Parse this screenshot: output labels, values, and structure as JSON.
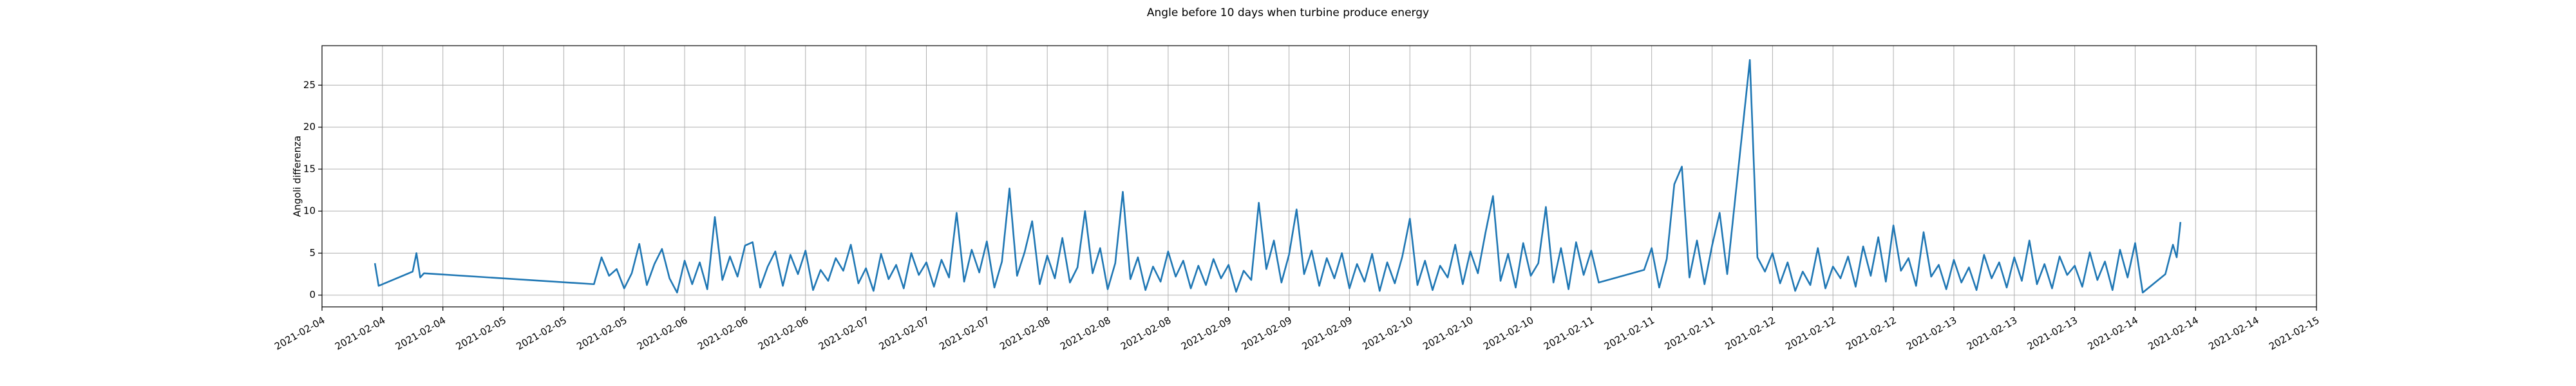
{
  "chart_data": {
    "type": "line",
    "title": "Angle before 10 days when turbine produce energy",
    "ylabel": "Angoli differenza",
    "color": "#1f77b4",
    "grid": true,
    "xlim": [
      "2021-02-04 00:00",
      "2021-02-15 00:00"
    ],
    "ylim": [
      -1.4,
      29.7
    ],
    "yticks": [
      0,
      5,
      10,
      15,
      20,
      25
    ],
    "xticks": [
      {
        "value": "2021-02-04 00:00",
        "label": "2021-02-04"
      },
      {
        "value": "2021-02-04 08:00",
        "label": "2021-02-04"
      },
      {
        "value": "2021-02-04 16:00",
        "label": "2021-02-04"
      },
      {
        "value": "2021-02-05 00:00",
        "label": "2021-02-05"
      },
      {
        "value": "2021-02-05 08:00",
        "label": "2021-02-05"
      },
      {
        "value": "2021-02-05 16:00",
        "label": "2021-02-05"
      },
      {
        "value": "2021-02-06 00:00",
        "label": "2021-02-06"
      },
      {
        "value": "2021-02-06 08:00",
        "label": "2021-02-06"
      },
      {
        "value": "2021-02-06 16:00",
        "label": "2021-02-06"
      },
      {
        "value": "2021-02-07 00:00",
        "label": "2021-02-07"
      },
      {
        "value": "2021-02-07 08:00",
        "label": "2021-02-07"
      },
      {
        "value": "2021-02-07 16:00",
        "label": "2021-02-07"
      },
      {
        "value": "2021-02-08 00:00",
        "label": "2021-02-08"
      },
      {
        "value": "2021-02-08 08:00",
        "label": "2021-02-08"
      },
      {
        "value": "2021-02-08 16:00",
        "label": "2021-02-08"
      },
      {
        "value": "2021-02-09 00:00",
        "label": "2021-02-09"
      },
      {
        "value": "2021-02-09 08:00",
        "label": "2021-02-09"
      },
      {
        "value": "2021-02-09 16:00",
        "label": "2021-02-09"
      },
      {
        "value": "2021-02-10 00:00",
        "label": "2021-02-10"
      },
      {
        "value": "2021-02-10 08:00",
        "label": "2021-02-10"
      },
      {
        "value": "2021-02-10 16:00",
        "label": "2021-02-10"
      },
      {
        "value": "2021-02-11 00:00",
        "label": "2021-02-11"
      },
      {
        "value": "2021-02-11 08:00",
        "label": "2021-02-11"
      },
      {
        "value": "2021-02-11 16:00",
        "label": "2021-02-11"
      },
      {
        "value": "2021-02-12 00:00",
        "label": "2021-02-12"
      },
      {
        "value": "2021-02-12 08:00",
        "label": "2021-02-12"
      },
      {
        "value": "2021-02-12 16:00",
        "label": "2021-02-12"
      },
      {
        "value": "2021-02-13 00:00",
        "label": "2021-02-13"
      },
      {
        "value": "2021-02-13 08:00",
        "label": "2021-02-13"
      },
      {
        "value": "2021-02-13 16:00",
        "label": "2021-02-13"
      },
      {
        "value": "2021-02-14 00:00",
        "label": "2021-02-14"
      },
      {
        "value": "2021-02-14 08:00",
        "label": "2021-02-14"
      },
      {
        "value": "2021-02-14 16:00",
        "label": "2021-02-14"
      },
      {
        "value": "2021-02-15 00:00",
        "label": "2021-02-15"
      }
    ],
    "x": [
      "2021-02-04 07:00",
      "2021-02-04 07:30",
      "2021-02-04 12:00",
      "2021-02-04 12:30",
      "2021-02-04 13:00",
      "2021-02-04 13:30",
      "2021-02-05 12:00",
      "2021-02-05 13:00",
      "2021-02-05 14:00",
      "2021-02-05 15:00",
      "2021-02-05 16:00",
      "2021-02-05 17:00",
      "2021-02-05 18:00",
      "2021-02-05 19:00",
      "2021-02-05 20:00",
      "2021-02-05 21:00",
      "2021-02-05 22:00",
      "2021-02-05 23:00",
      "2021-02-06 00:00",
      "2021-02-06 01:00",
      "2021-02-06 02:00",
      "2021-02-06 03:00",
      "2021-02-06 04:00",
      "2021-02-06 05:00",
      "2021-02-06 06:00",
      "2021-02-06 07:00",
      "2021-02-06 08:00",
      "2021-02-06 09:00",
      "2021-02-06 10:00",
      "2021-02-06 11:00",
      "2021-02-06 12:00",
      "2021-02-06 13:00",
      "2021-02-06 14:00",
      "2021-02-06 15:00",
      "2021-02-06 16:00",
      "2021-02-06 17:00",
      "2021-02-06 18:00",
      "2021-02-06 19:00",
      "2021-02-06 20:00",
      "2021-02-06 21:00",
      "2021-02-06 22:00",
      "2021-02-06 23:00",
      "2021-02-07 00:00",
      "2021-02-07 01:00",
      "2021-02-07 02:00",
      "2021-02-07 03:00",
      "2021-02-07 04:00",
      "2021-02-07 05:00",
      "2021-02-07 06:00",
      "2021-02-07 07:00",
      "2021-02-07 08:00",
      "2021-02-07 09:00",
      "2021-02-07 10:00",
      "2021-02-07 11:00",
      "2021-02-07 12:00",
      "2021-02-07 13:00",
      "2021-02-07 14:00",
      "2021-02-07 15:00",
      "2021-02-07 16:00",
      "2021-02-07 17:00",
      "2021-02-07 18:00",
      "2021-02-07 19:00",
      "2021-02-07 20:00",
      "2021-02-07 21:00",
      "2021-02-07 22:00",
      "2021-02-07 23:00",
      "2021-02-08 00:00",
      "2021-02-08 01:00",
      "2021-02-08 02:00",
      "2021-02-08 03:00",
      "2021-02-08 04:00",
      "2021-02-08 05:00",
      "2021-02-08 06:00",
      "2021-02-08 07:00",
      "2021-02-08 08:00",
      "2021-02-08 09:00",
      "2021-02-08 10:00",
      "2021-02-08 11:00",
      "2021-02-08 12:00",
      "2021-02-08 13:00",
      "2021-02-08 14:00",
      "2021-02-08 15:00",
      "2021-02-08 16:00",
      "2021-02-08 17:00",
      "2021-02-08 18:00",
      "2021-02-08 19:00",
      "2021-02-08 20:00",
      "2021-02-08 21:00",
      "2021-02-08 22:00",
      "2021-02-08 23:00",
      "2021-02-09 00:00",
      "2021-02-09 01:00",
      "2021-02-09 02:00",
      "2021-02-09 03:00",
      "2021-02-09 04:00",
      "2021-02-09 05:00",
      "2021-02-09 06:00",
      "2021-02-09 07:00",
      "2021-02-09 08:00",
      "2021-02-09 09:00",
      "2021-02-09 10:00",
      "2021-02-09 11:00",
      "2021-02-09 12:00",
      "2021-02-09 13:00",
      "2021-02-09 14:00",
      "2021-02-09 15:00",
      "2021-02-09 16:00",
      "2021-02-09 17:00",
      "2021-02-09 18:00",
      "2021-02-09 19:00",
      "2021-02-09 20:00",
      "2021-02-09 21:00",
      "2021-02-09 22:00",
      "2021-02-09 23:00",
      "2021-02-10 00:00",
      "2021-02-10 01:00",
      "2021-02-10 02:00",
      "2021-02-10 03:00",
      "2021-02-10 04:00",
      "2021-02-10 05:00",
      "2021-02-10 06:00",
      "2021-02-10 07:00",
      "2021-02-10 08:00",
      "2021-02-10 09:00",
      "2021-02-10 10:00",
      "2021-02-10 11:00",
      "2021-02-10 12:00",
      "2021-02-10 13:00",
      "2021-02-10 14:00",
      "2021-02-10 15:00",
      "2021-02-10 16:00",
      "2021-02-10 17:00",
      "2021-02-10 18:00",
      "2021-02-10 19:00",
      "2021-02-10 20:00",
      "2021-02-10 21:00",
      "2021-02-10 22:00",
      "2021-02-10 23:00",
      "2021-02-11 00:00",
      "2021-02-11 01:00",
      "2021-02-11 07:00",
      "2021-02-11 08:00",
      "2021-02-11 09:00",
      "2021-02-11 10:00",
      "2021-02-11 11:00",
      "2021-02-11 12:00",
      "2021-02-11 13:00",
      "2021-02-11 14:00",
      "2021-02-11 15:00",
      "2021-02-11 16:00",
      "2021-02-11 17:00",
      "2021-02-11 18:00",
      "2021-02-11 21:00",
      "2021-02-11 22:00",
      "2021-02-11 23:00",
      "2021-02-12 00:00",
      "2021-02-12 01:00",
      "2021-02-12 02:00",
      "2021-02-12 03:00",
      "2021-02-12 04:00",
      "2021-02-12 05:00",
      "2021-02-12 06:00",
      "2021-02-12 07:00",
      "2021-02-12 08:00",
      "2021-02-12 09:00",
      "2021-02-12 10:00",
      "2021-02-12 11:00",
      "2021-02-12 12:00",
      "2021-02-12 13:00",
      "2021-02-12 14:00",
      "2021-02-12 15:00",
      "2021-02-12 16:00",
      "2021-02-12 17:00",
      "2021-02-12 18:00",
      "2021-02-12 19:00",
      "2021-02-12 20:00",
      "2021-02-12 21:00",
      "2021-02-12 22:00",
      "2021-02-12 23:00",
      "2021-02-13 00:00",
      "2021-02-13 01:00",
      "2021-02-13 02:00",
      "2021-02-13 03:00",
      "2021-02-13 04:00",
      "2021-02-13 05:00",
      "2021-02-13 06:00",
      "2021-02-13 07:00",
      "2021-02-13 08:00",
      "2021-02-13 09:00",
      "2021-02-13 10:00",
      "2021-02-13 11:00",
      "2021-02-13 12:00",
      "2021-02-13 13:00",
      "2021-02-13 14:00",
      "2021-02-13 15:00",
      "2021-02-13 16:00",
      "2021-02-13 17:00",
      "2021-02-13 18:00",
      "2021-02-13 19:00",
      "2021-02-13 20:00",
      "2021-02-13 21:00",
      "2021-02-13 22:00",
      "2021-02-13 23:00",
      "2021-02-14 00:00",
      "2021-02-14 01:00",
      "2021-02-14 04:00",
      "2021-02-14 05:00",
      "2021-02-14 05:30",
      "2021-02-14 06:00"
    ],
    "values": [
      3.8,
      1.1,
      2.8,
      5.0,
      2.1,
      2.6,
      1.3,
      4.5,
      2.3,
      3.1,
      0.8,
      2.6,
      6.1,
      1.2,
      3.7,
      5.5,
      2.0,
      0.3,
      4.1,
      1.3,
      3.9,
      0.7,
      9.3,
      1.8,
      4.6,
      2.2,
      5.9,
      6.3,
      0.9,
      3.4,
      5.2,
      1.1,
      4.8,
      2.5,
      5.3,
      0.6,
      3.0,
      1.7,
      4.4,
      2.9,
      6.0,
      1.4,
      3.2,
      0.5,
      4.9,
      1.9,
      3.6,
      0.8,
      5.0,
      2.4,
      3.9,
      1.0,
      4.2,
      2.1,
      9.8,
      1.6,
      5.4,
      2.7,
      6.4,
      0.9,
      4.0,
      12.7,
      2.3,
      5.1,
      8.8,
      1.3,
      4.7,
      2.0,
      6.8,
      1.5,
      3.3,
      10.0,
      2.6,
      5.6,
      0.7,
      3.8,
      12.3,
      1.9,
      4.5,
      0.6,
      3.4,
      1.6,
      5.2,
      2.2,
      4.1,
      0.8,
      3.5,
      1.2,
      4.3,
      2.0,
      3.6,
      0.4,
      2.9,
      1.8,
      11.0,
      3.1,
      6.5,
      1.5,
      4.8,
      10.2,
      2.5,
      5.3,
      1.1,
      4.4,
      2.0,
      5.0,
      0.8,
      3.7,
      1.6,
      4.9,
      0.5,
      3.9,
      1.4,
      4.6,
      9.1,
      1.2,
      4.1,
      0.6,
      3.5,
      2.1,
      6.0,
      1.3,
      5.2,
      2.6,
      7.4,
      11.8,
      1.7,
      4.9,
      0.9,
      6.2,
      2.3,
      3.8,
      10.5,
      1.5,
      5.6,
      0.7,
      6.3,
      2.4,
      5.3,
      1.5,
      3.0,
      5.6,
      0.9,
      4.3,
      13.2,
      15.3,
      2.1,
      6.5,
      1.3,
      5.9,
      9.8,
      2.5,
      28.0,
      4.5,
      2.8,
      5.0,
      1.4,
      3.9,
      0.5,
      2.8,
      1.2,
      5.6,
      0.8,
      3.4,
      2.0,
      4.6,
      1.0,
      5.8,
      2.3,
      6.9,
      1.6,
      8.3,
      2.9,
      4.4,
      1.1,
      7.5,
      2.2,
      3.6,
      0.7,
      4.2,
      1.5,
      3.3,
      0.6,
      4.8,
      2.0,
      3.9,
      0.9,
      4.5,
      1.7,
      6.5,
      1.3,
      3.7,
      0.8,
      4.6,
      2.4,
      3.5,
      1.0,
      5.1,
      1.8,
      4.0,
      0.6,
      5.4,
      2.1,
      6.2,
      0.3,
      2.5,
      6.0,
      4.5,
      8.7
    ]
  }
}
